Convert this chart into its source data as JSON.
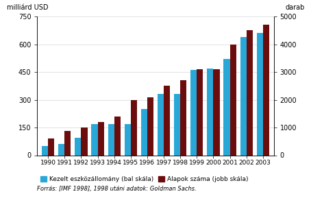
{
  "years": [
    1990,
    1991,
    1992,
    1993,
    1994,
    1995,
    1996,
    1997,
    1998,
    1999,
    2000,
    2001,
    2002,
    2003
  ],
  "assets": [
    50,
    60,
    95,
    170,
    167,
    167,
    250,
    330,
    330,
    460,
    470,
    520,
    640,
    660
  ],
  "funds": [
    600,
    880,
    1000,
    1200,
    1400,
    2000,
    2100,
    2500,
    2700,
    3100,
    3100,
    4000,
    4500,
    4700
  ],
  "bar_color_blue": "#29a8d8",
  "bar_color_dark": "#6b0d0d",
  "left_ylabel": "milliárd USD",
  "right_ylabel": "darab",
  "ylim_left": [
    0,
    750
  ],
  "ylim_right": [
    0,
    5000
  ],
  "yticks_left": [
    0,
    150,
    300,
    450,
    600,
    750
  ],
  "yticks_right": [
    0,
    1000,
    2000,
    3000,
    4000,
    5000
  ],
  "legend_blue": "Kezelt eszközállomány (bal skála)",
  "legend_dark": "Alapok száma (jobb skála)",
  "footnote": "Forrás: [IMF 1998], 1998 utáni adatok: Goldman Sachs.",
  "background_color": "#ffffff",
  "bar_width": 0.38
}
